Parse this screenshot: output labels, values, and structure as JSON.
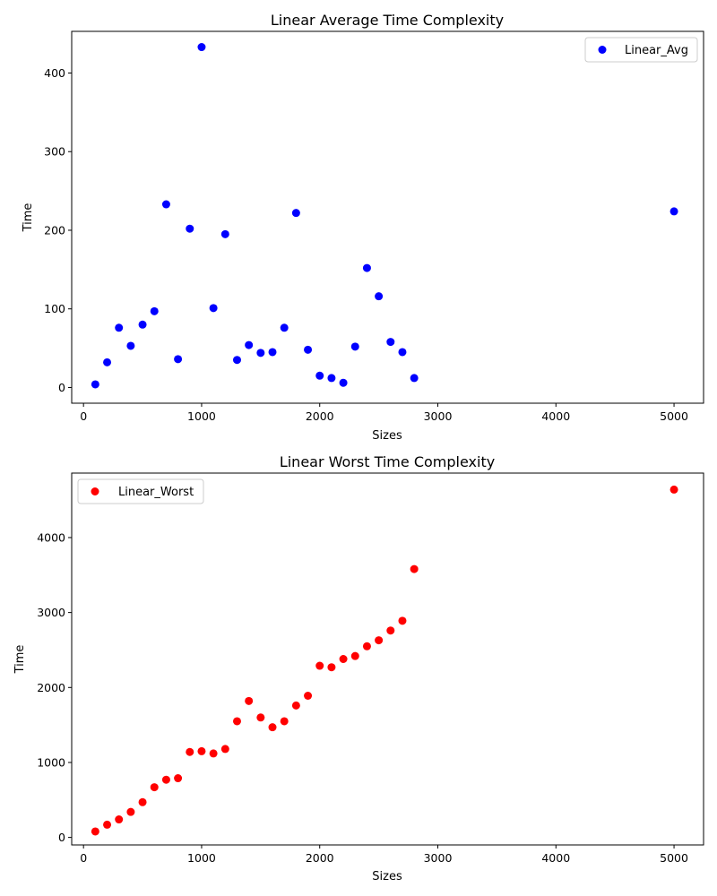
{
  "chart_data": [
    {
      "type": "scatter",
      "title": "Linear Average Time Complexity",
      "xlabel": "Sizes",
      "ylabel": "Time",
      "xlim": [
        -100,
        5250
      ],
      "ylim": [
        -20,
        453
      ],
      "xticks": [
        0,
        1000,
        2000,
        3000,
        4000,
        5000
      ],
      "yticks": [
        0,
        100,
        200,
        300,
        400
      ],
      "legend_position": "top-right",
      "grid": false,
      "series": [
        {
          "name": "Linear_Avg",
          "color": "#0000ff",
          "x": [
            100,
            200,
            300,
            400,
            500,
            600,
            700,
            800,
            900,
            1000,
            1100,
            1200,
            1300,
            1400,
            1500,
            1600,
            1700,
            1800,
            1900,
            2000,
            2100,
            2200,
            2300,
            2400,
            2500,
            2600,
            2700,
            2800,
            5000
          ],
          "y": [
            4,
            32,
            76,
            53,
            80,
            97,
            233,
            36,
            202,
            433,
            101,
            195,
            35,
            54,
            44,
            45,
            76,
            222,
            48,
            15,
            12,
            6,
            52,
            152,
            116,
            58,
            45,
            12,
            224
          ]
        }
      ]
    },
    {
      "type": "scatter",
      "title": "Linear Worst Time Complexity",
      "xlabel": "Sizes",
      "ylabel": "Time",
      "xlim": [
        -100,
        5250
      ],
      "ylim": [
        -100,
        4860
      ],
      "xticks": [
        0,
        1000,
        2000,
        3000,
        4000,
        5000
      ],
      "yticks": [
        0,
        1000,
        2000,
        3000,
        4000
      ],
      "legend_position": "top-left",
      "grid": false,
      "series": [
        {
          "name": "Linear_Worst",
          "color": "#ff0000",
          "x": [
            100,
            200,
            300,
            400,
            500,
            600,
            700,
            800,
            900,
            1000,
            1100,
            1200,
            1300,
            1400,
            1500,
            1600,
            1700,
            1800,
            1900,
            2000,
            2100,
            2200,
            2300,
            2400,
            2500,
            2600,
            2700,
            2800,
            5000
          ],
          "y": [
            80,
            170,
            240,
            340,
            470,
            670,
            770,
            790,
            1140,
            1150,
            1120,
            1180,
            1550,
            1820,
            1600,
            1470,
            1550,
            1760,
            1890,
            2290,
            2270,
            2380,
            2420,
            2550,
            2630,
            2760,
            2890,
            3580,
            4640
          ]
        }
      ]
    }
  ]
}
